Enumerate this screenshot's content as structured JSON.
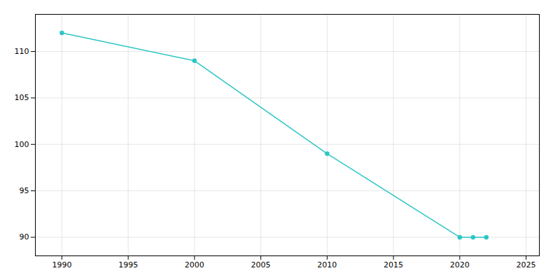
{
  "chart_data": {
    "type": "line",
    "x": [
      1990,
      2000,
      2010,
      2020,
      2021,
      2022
    ],
    "values": [
      112,
      109,
      99,
      90,
      90,
      90
    ],
    "color": "#2DC5C5",
    "marker": "circle",
    "xlim": [
      1988,
      2026
    ],
    "ylim": [
      88,
      114
    ],
    "xticks": [
      1990,
      1995,
      2000,
      2005,
      2010,
      2015,
      2020,
      2025
    ],
    "yticks": [
      90,
      95,
      100,
      105,
      110
    ],
    "grid": true
  }
}
